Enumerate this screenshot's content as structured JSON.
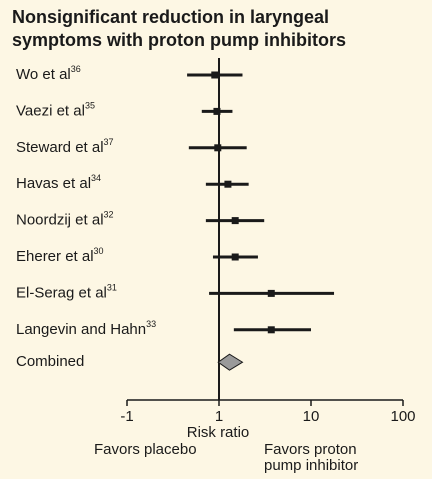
{
  "chart_data": {
    "type": "forest",
    "title": [
      "Nonsignificant reduction in laryngeal",
      "symptoms with proton pump inhibitors"
    ],
    "categories": [
      "Wo et al",
      "Vaezi et al",
      "Steward et al",
      "Havas et al",
      "Noordzij et al",
      "Eherer et al",
      "El-Serag et al",
      "Langevin and Hahn"
    ],
    "refs": [
      "36",
      "35",
      "37",
      "34",
      "32",
      "30",
      "31",
      "33"
    ],
    "values": [
      0.9,
      0.95,
      0.97,
      1.25,
      1.5,
      1.5,
      3.7,
      3.7
    ],
    "lower": [
      0.45,
      0.65,
      0.47,
      0.72,
      0.72,
      0.86,
      0.78,
      1.45
    ],
    "upper": [
      1.8,
      1.4,
      2.0,
      2.1,
      3.1,
      2.65,
      17.8,
      10
    ],
    "summary": {
      "name": "Combined",
      "value": 1.3,
      "lower": 0.98,
      "upper": 1.8
    },
    "x_label": "Risk ratio",
    "left_note": "Favors placebo",
    "right_note": [
      "Favors proton",
      "pump inhibitor"
    ],
    "log_x": true,
    "xlim": [
      0.1,
      100
    ],
    "xticks": [
      {
        "value": 0.1,
        "label": "-1"
      },
      1,
      10,
      100
    ],
    "reference_line": 1,
    "title_color": "#1a9a3c",
    "color": "#1a1a1a",
    "summary_color": "#9a9a9a"
  }
}
